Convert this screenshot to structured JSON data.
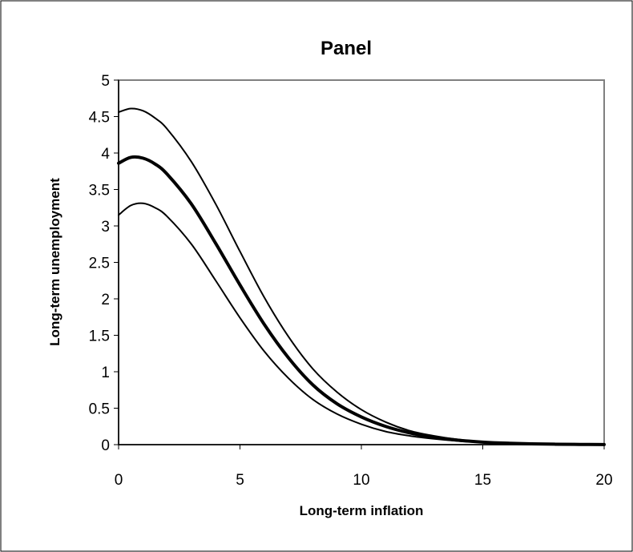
{
  "chart_data": {
    "type": "line",
    "title": "Panel",
    "xlabel": "Long-term inflation",
    "ylabel": "Long-term unemployment",
    "xlim": [
      0,
      20
    ],
    "ylim": [
      0,
      5
    ],
    "x_ticks": [
      "0",
      "5",
      "10",
      "15",
      "20"
    ],
    "y_ticks": [
      "0",
      "0.5",
      "1",
      "1.5",
      "2",
      "2.5",
      "3",
      "3.5",
      "4",
      "4.5",
      "5"
    ],
    "grid": false,
    "legend": "none",
    "series": [
      {
        "style": "upper-bound",
        "color": "#000000",
        "x": [
          0,
          0.5,
          1,
          1.5,
          2,
          3,
          4,
          5,
          6,
          7,
          8,
          9,
          10,
          11,
          12,
          13,
          14,
          15,
          16,
          17,
          18,
          19,
          20
        ],
        "y": [
          4.56,
          4.61,
          4.58,
          4.48,
          4.33,
          3.88,
          3.3,
          2.65,
          2.02,
          1.48,
          1.04,
          0.72,
          0.48,
          0.31,
          0.19,
          0.12,
          0.07,
          0.04,
          0.02,
          0.012,
          0.006,
          0.003,
          0.001
        ]
      },
      {
        "style": "estimate",
        "color": "#000000",
        "x": [
          0,
          0.5,
          1,
          1.5,
          2,
          3,
          4,
          5,
          6,
          7,
          8,
          9,
          10,
          11,
          12,
          13,
          14,
          15,
          16,
          17,
          18,
          19,
          20
        ],
        "y": [
          3.86,
          3.94,
          3.93,
          3.85,
          3.71,
          3.3,
          2.76,
          2.19,
          1.65,
          1.19,
          0.82,
          0.56,
          0.38,
          0.25,
          0.16,
          0.1,
          0.06,
          0.035,
          0.02,
          0.011,
          0.006,
          0.003,
          0.001
        ]
      },
      {
        "style": "lower-bound",
        "color": "#000000",
        "x": [
          0,
          0.5,
          1,
          1.5,
          2,
          3,
          4,
          5,
          6,
          7,
          8,
          9,
          10,
          11,
          12,
          13,
          14,
          15,
          16,
          17,
          18,
          19,
          20
        ],
        "y": [
          3.15,
          3.28,
          3.31,
          3.25,
          3.13,
          2.75,
          2.25,
          1.74,
          1.28,
          0.91,
          0.62,
          0.42,
          0.28,
          0.18,
          0.12,
          0.08,
          0.05,
          0.03,
          0.018,
          0.01,
          0.005,
          0.003,
          0.001
        ]
      }
    ]
  }
}
